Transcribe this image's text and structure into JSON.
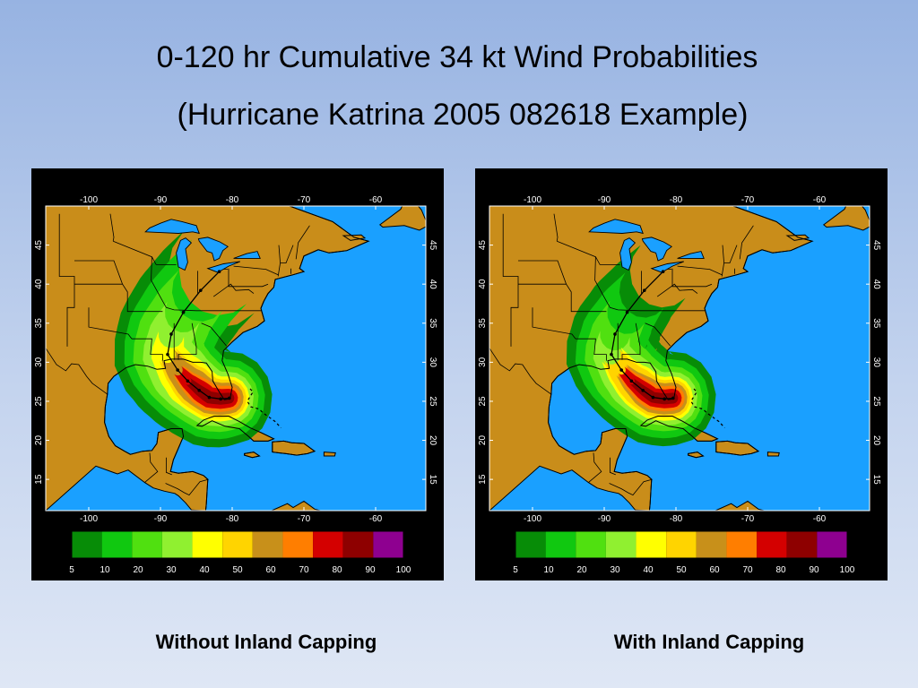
{
  "title_line1": "0-120 hr Cumulative 34 kt Wind Probabilities",
  "title_line2": "(Hurricane Katrina 2005 082618 Example)",
  "colors": {
    "ocean": "#1aa0ff",
    "land": "#c98d1a",
    "bins": [
      "#078c07",
      "#10c810",
      "#50e010",
      "#90f030",
      "#ffff00",
      "#ffd400",
      "#c8901a",
      "#ff7e00",
      "#d40000",
      "#8e0000",
      "#8e0090"
    ]
  },
  "map": {
    "lon_ticks": [
      "-100",
      "-90",
      "-80",
      "-70",
      "-60"
    ],
    "lat_ticks": [
      "45",
      "40",
      "35",
      "30",
      "25",
      "20",
      "15"
    ]
  },
  "colorbar": {
    "labels": [
      "5",
      "10",
      "20",
      "30",
      "40",
      "50",
      "60",
      "70",
      "80",
      "90",
      "100"
    ]
  },
  "panels": [
    {
      "caption": "Without Inland Capping",
      "inland_capping": false
    },
    {
      "caption": "With Inland Capping",
      "inland_capping": true
    }
  ]
}
